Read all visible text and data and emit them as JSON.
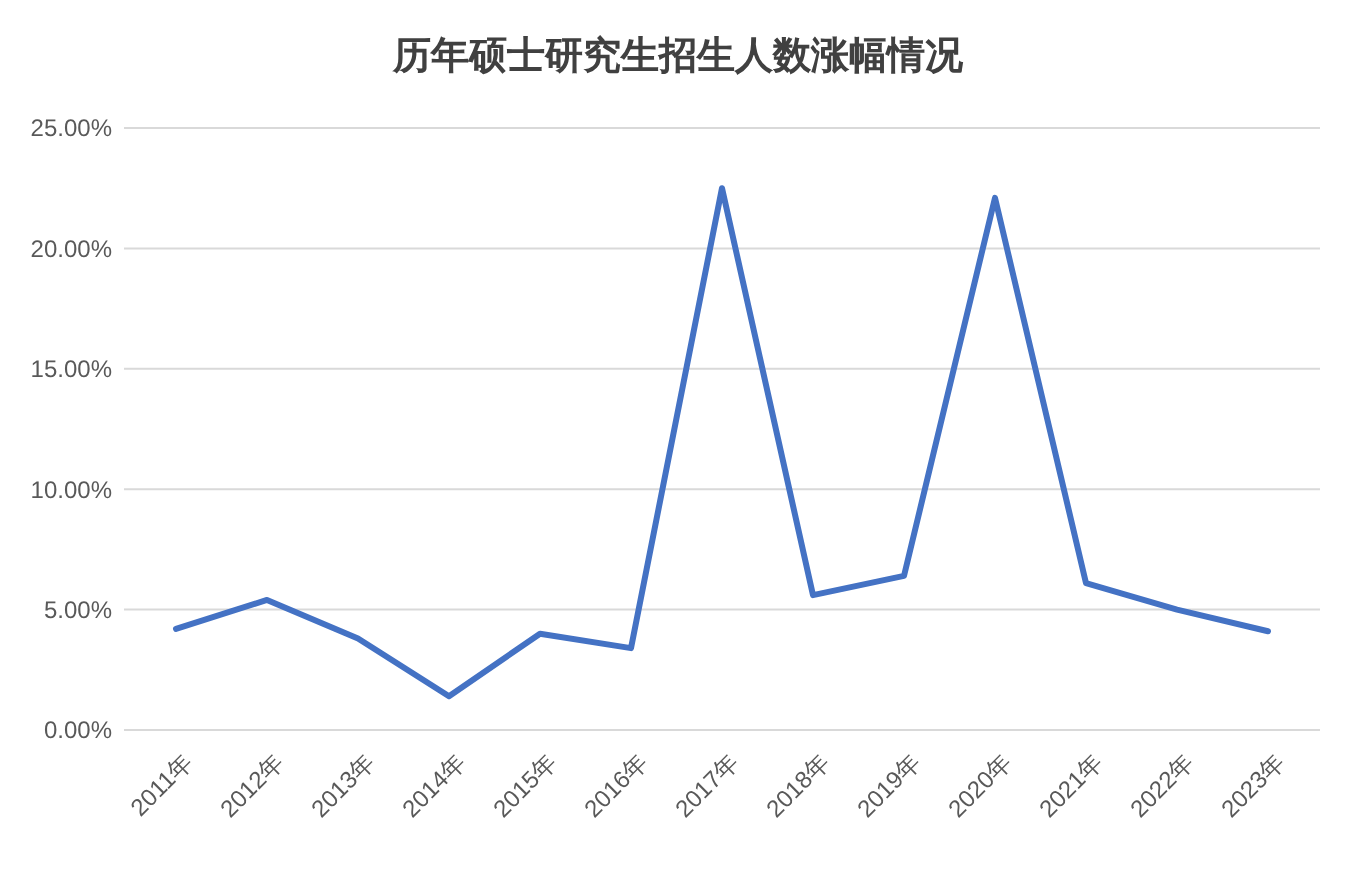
{
  "chart_data": {
    "type": "line",
    "title": "历年硕士研究生招生人数涨幅情况",
    "categories": [
      "2011年",
      "2012年",
      "2013年",
      "2014年",
      "2015年",
      "2016年",
      "2017年",
      "2018年",
      "2019年",
      "2020年",
      "2021年",
      "2022年",
      "2023年"
    ],
    "series": [
      {
        "color": "#4472c4",
        "values": [
          4.2,
          5.4,
          3.8,
          1.4,
          4.0,
          3.4,
          22.5,
          5.6,
          6.4,
          22.1,
          6.1,
          5.0,
          4.1
        ]
      }
    ],
    "ylim": [
      0,
      25
    ],
    "yticks": [
      {
        "value": 0,
        "label": "0.00%"
      },
      {
        "value": 5,
        "label": "5.00%"
      },
      {
        "value": 10,
        "label": "10.00%"
      },
      {
        "value": 15,
        "label": "15.00%"
      },
      {
        "value": 20,
        "label": "20.00%"
      },
      {
        "value": 25,
        "label": "25.00%"
      }
    ],
    "grid": "y",
    "marker": "none",
    "line_style": "solid"
  }
}
